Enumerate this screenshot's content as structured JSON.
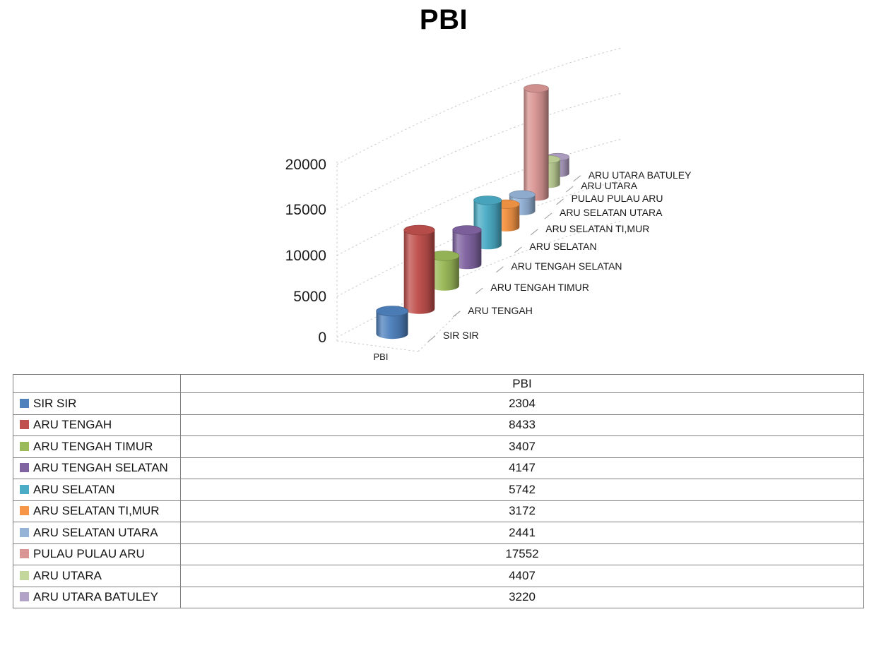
{
  "chart": {
    "title": "PBI",
    "x_axis_label": "PBI",
    "y_ticks": [
      "0",
      "5000",
      "10000",
      "15000",
      "20000"
    ]
  },
  "chart_data": {
    "type": "bar",
    "subtype": "3d-cylinder",
    "title": "PBI",
    "series_name": "PBI",
    "categories": [
      "SIR SIR",
      "ARU TENGAH",
      "ARU TENGAH TIMUR",
      "ARU TENGAH SELATAN",
      "ARU SELATAN",
      "ARU SELATAN TI,MUR",
      "ARU SELATAN UTARA",
      "PULAU PULAU ARU",
      "ARU UTARA",
      "ARU UTARA BATULEY"
    ],
    "values": [
      2304,
      8433,
      3407,
      4147,
      5742,
      3172,
      2441,
      17552,
      4407,
      3220
    ],
    "colors": [
      "#4F81BD",
      "#C0504D",
      "#9BBB59",
      "#8064A2",
      "#4BACC6",
      "#F79646",
      "#95B3D7",
      "#D99694",
      "#C3D69B",
      "#B3A2C7"
    ],
    "xlabel": "PBI",
    "ylabel": "",
    "ylim": [
      0,
      20000
    ],
    "y_tick_step": 5000,
    "grid": "dashed",
    "legend_position": "table-rows-left"
  },
  "table": {
    "value_header": "PBI",
    "rows": [
      {
        "label": "SIR SIR",
        "value": "2304",
        "color": "#4F81BD"
      },
      {
        "label": "ARU TENGAH",
        "value": "8433",
        "color": "#C0504D"
      },
      {
        "label": "ARU TENGAH TIMUR",
        "value": "3407",
        "color": "#9BBB59"
      },
      {
        "label": "ARU TENGAH SELATAN",
        "value": "4147",
        "color": "#8064A2"
      },
      {
        "label": "ARU SELATAN",
        "value": "5742",
        "color": "#4BACC6"
      },
      {
        "label": "ARU SELATAN TI,MUR",
        "value": "3172",
        "color": "#F79646"
      },
      {
        "label": "ARU SELATAN UTARA",
        "value": "2441",
        "color": "#95B3D7"
      },
      {
        "label": "PULAU PULAU ARU",
        "value": "17552",
        "color": "#D99694"
      },
      {
        "label": "ARU UTARA",
        "value": "4407",
        "color": "#C3D69B"
      },
      {
        "label": "ARU UTARA BATULEY",
        "value": "3220",
        "color": "#B3A2C7"
      }
    ]
  }
}
